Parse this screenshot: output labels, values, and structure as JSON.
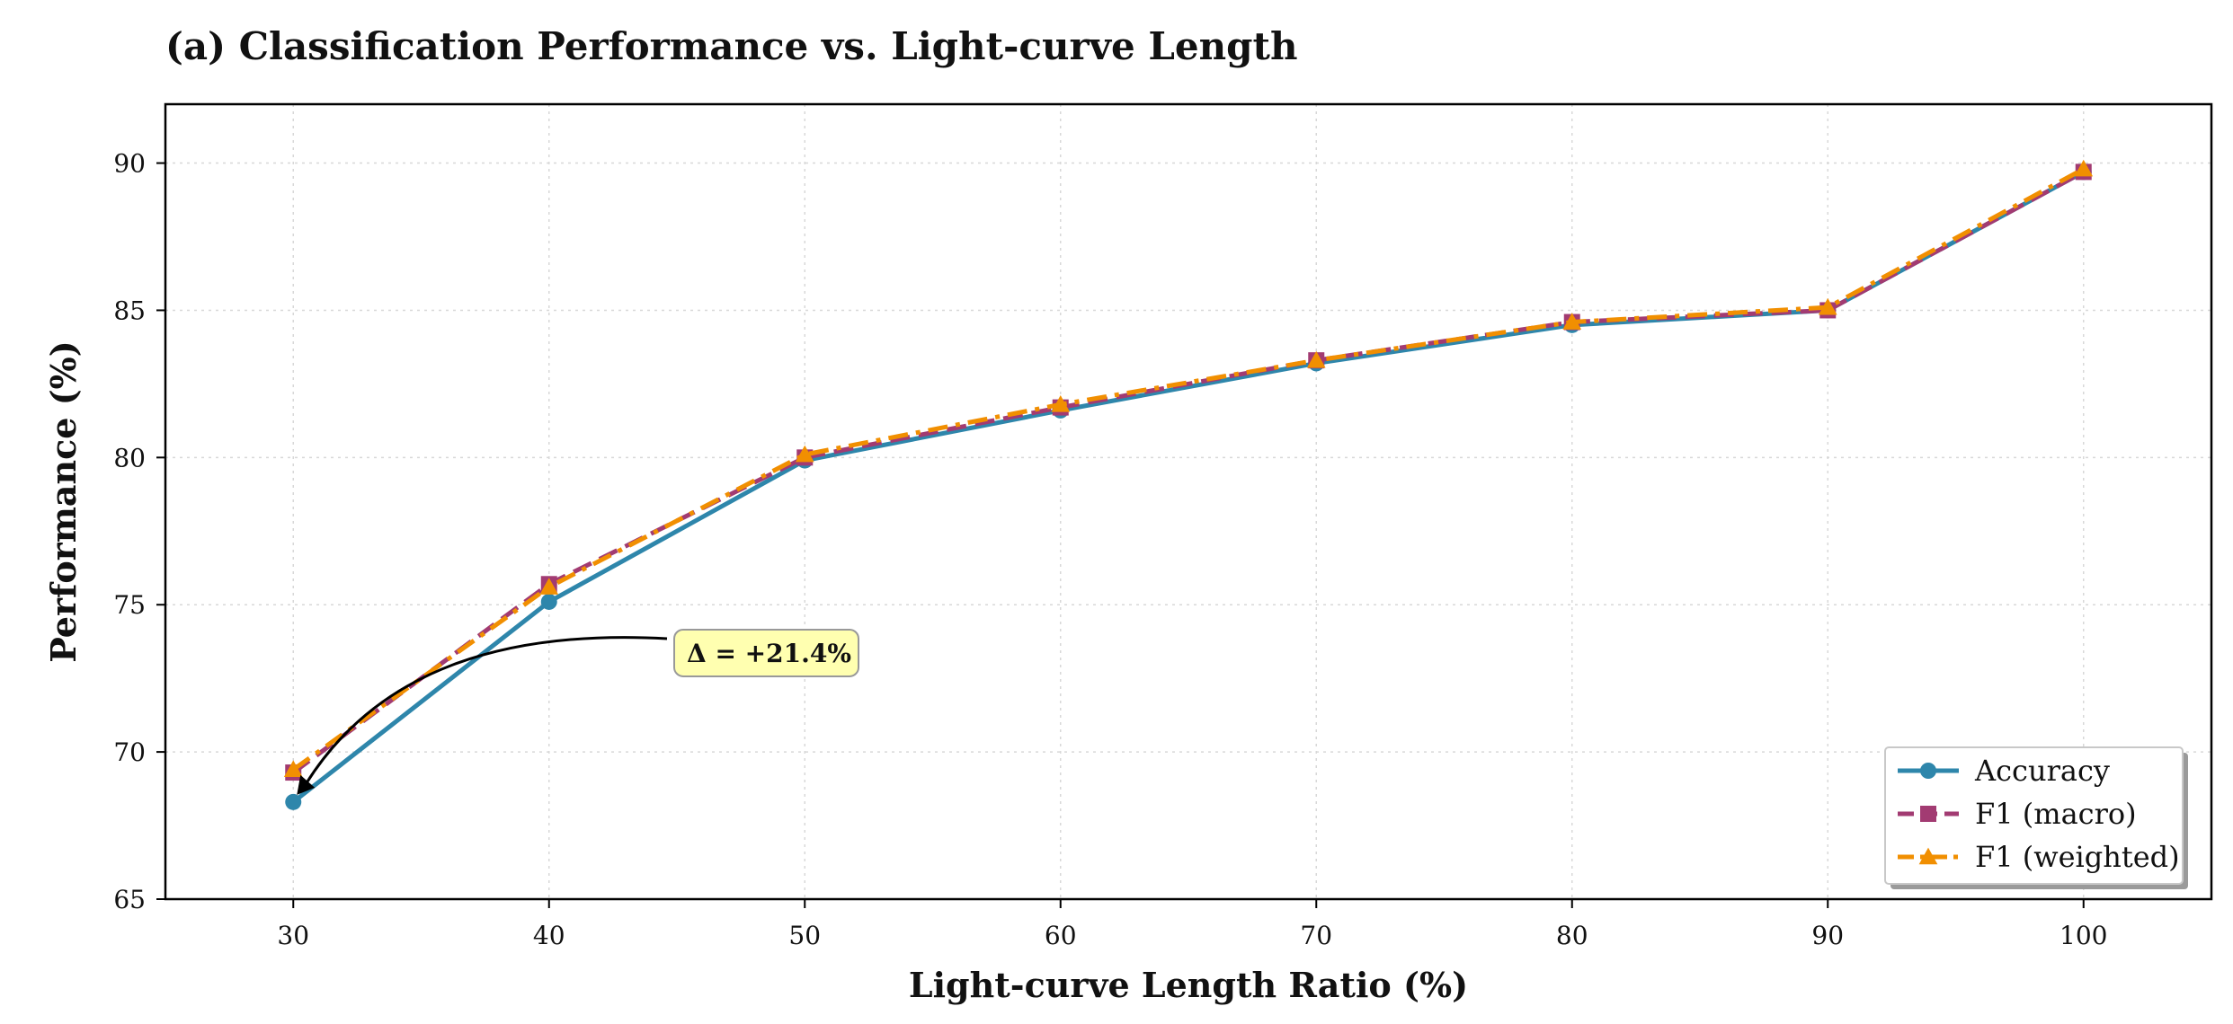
{
  "chart_data": {
    "type": "line",
    "title": "(a) Classification Performance vs. Light-curve Length",
    "xlabel": "Light-curve Length Ratio (%)",
    "ylabel": "Performance (%)",
    "x": [
      30,
      40,
      50,
      60,
      70,
      80,
      90,
      100
    ],
    "xlim": [
      25,
      105
    ],
    "ylim": [
      65,
      92
    ],
    "xticks": [
      30,
      40,
      50,
      60,
      70,
      80,
      90,
      100
    ],
    "yticks": [
      65,
      70,
      75,
      80,
      85,
      90
    ],
    "grid": true,
    "legend_position": "lower-right",
    "series": [
      {
        "name": "Accuracy",
        "values": [
          68.3,
          75.1,
          79.9,
          81.6,
          83.2,
          84.5,
          85.0,
          89.7
        ],
        "color": "#2E86AB",
        "marker": "circle",
        "dash": "solid"
      },
      {
        "name": "F1 (macro)",
        "values": [
          69.3,
          75.7,
          80.0,
          81.7,
          83.3,
          84.6,
          85.0,
          89.7
        ],
        "color": "#A23B72",
        "marker": "square",
        "dash": "dashed"
      },
      {
        "name": "F1 (weighted)",
        "values": [
          69.4,
          75.6,
          80.1,
          81.8,
          83.3,
          84.6,
          85.1,
          89.8
        ],
        "color": "#F18F01",
        "marker": "triangle",
        "dash": "dashdot"
      }
    ],
    "annotation": {
      "text": "Δ = +21.4%",
      "target_x": 30,
      "target_y": 68.3,
      "text_x": 45,
      "text_y": 73.3,
      "box_color": "#FFFFB0"
    }
  }
}
